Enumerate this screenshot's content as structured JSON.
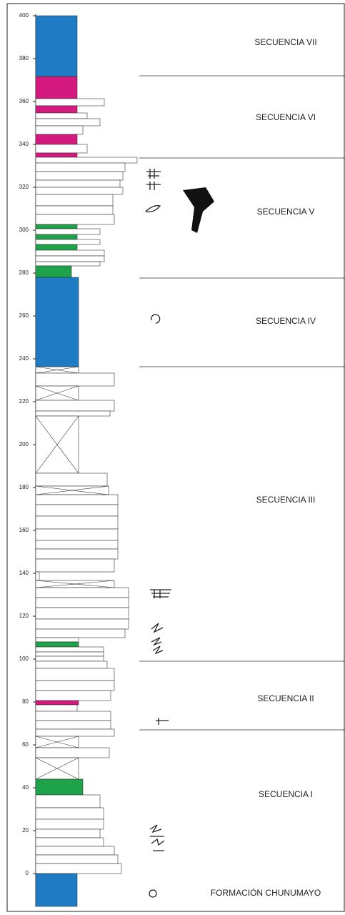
{
  "axis": {
    "ticks": [
      0,
      20,
      40,
      60,
      80,
      100,
      120,
      140,
      160,
      180,
      200,
      220,
      240,
      260,
      280,
      300,
      320,
      340,
      360,
      380,
      400
    ]
  },
  "sequences": [
    {
      "label": "SECUENCIA VII"
    },
    {
      "label": "SECUENCIA VI"
    },
    {
      "label": "SECUENCIA V"
    },
    {
      "label": "SECUENCIA IV"
    },
    {
      "label": "SECUENCIA III"
    },
    {
      "label": "SECUENCIA II"
    },
    {
      "label": "SECUENCIA I"
    }
  ],
  "formation": {
    "label": "FORMACIÓN CHUNUMAYO"
  }
}
